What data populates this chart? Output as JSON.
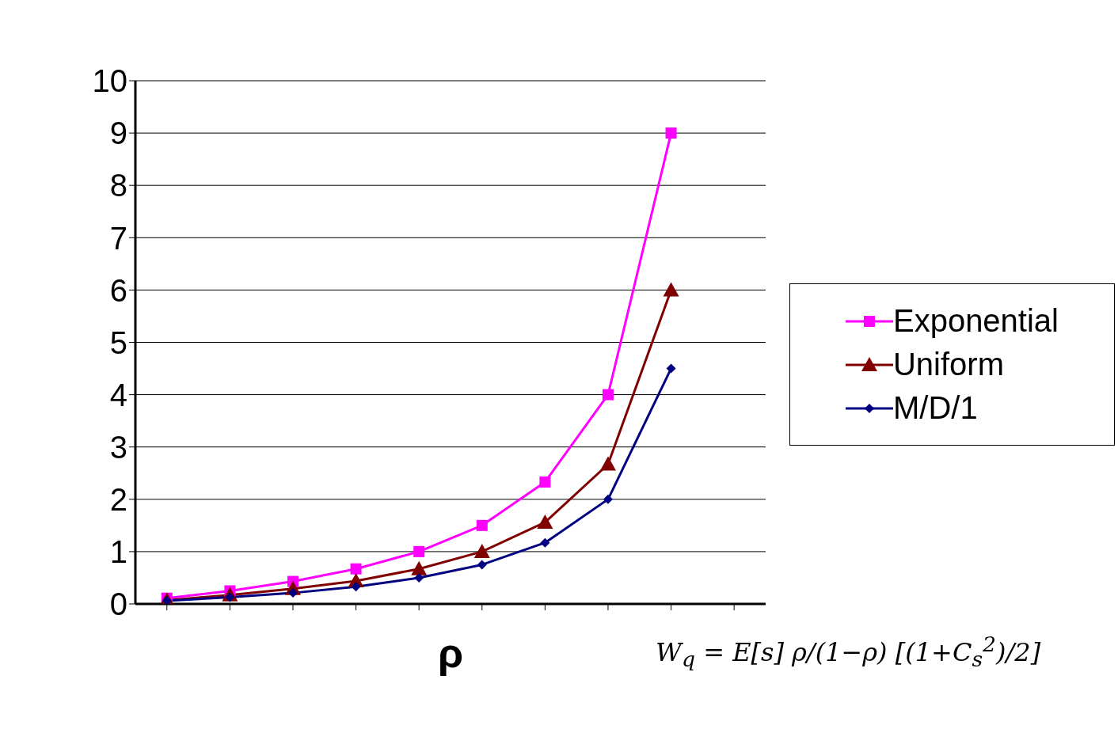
{
  "chart_data": {
    "type": "line",
    "xlabel": "ρ",
    "categories": [
      null,
      null,
      null,
      null,
      null,
      null,
      null,
      null,
      null,
      null
    ],
    "series": [
      {
        "name": "Exponential",
        "color": "#ff00ff",
        "marker": "square",
        "values": [
          0.11,
          0.25,
          0.43,
          0.67,
          1,
          1.5,
          2.33,
          4,
          9,
          null
        ]
      },
      {
        "name": "Uniform",
        "color": "#800000",
        "marker": "triangle",
        "values": [
          0.07,
          0.17,
          0.29,
          0.44,
          0.67,
          1,
          1.56,
          2.67,
          6,
          null
        ]
      },
      {
        "name": "M/D/1",
        "color": "#000080",
        "marker": "diamond",
        "values": [
          0.06,
          0.13,
          0.21,
          0.33,
          0.5,
          0.75,
          1.17,
          2,
          4.5,
          null
        ]
      }
    ],
    "ylim": [
      0,
      10
    ],
    "yticks": [
      0,
      1,
      2,
      3,
      4,
      5,
      6,
      7,
      8,
      9,
      10
    ],
    "grid": "y",
    "legend": "right",
    "tick_labels": "y",
    "annotations": [
      "W$_{q}$ = E[s] ρ/(1−ρ) [(1+C$_{s}$$^{2}$)/2]"
    ]
  }
}
